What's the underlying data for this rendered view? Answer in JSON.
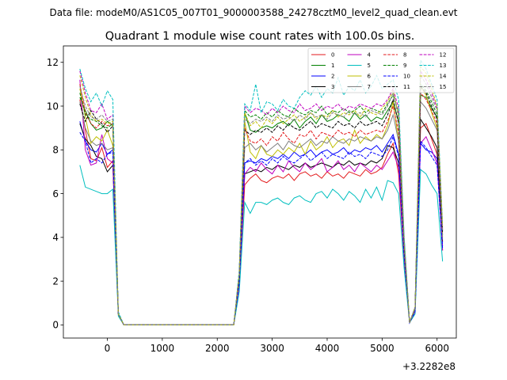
{
  "chart_data": {
    "type": "line",
    "suptitle": "Data file: modeM0/AS1C05_007T01_9000003588_24278cztM0_level2_quad_clean.evt",
    "title": "Quadrant 1 module wise count rates with 100.0s bins.",
    "xlabel": "",
    "ylabel": "",
    "x_offset_label": "+3.2282e8",
    "xlim": [
      -800,
      6350
    ],
    "ylim": [
      -0.6,
      12.75
    ],
    "xticks": [
      0,
      1000,
      2000,
      3000,
      4000,
      5000,
      6000
    ],
    "xtick_labels": [
      "0",
      "1000",
      "2000",
      "3000",
      "4000",
      "5000",
      "6000"
    ],
    "yticks": [
      0,
      2,
      4,
      6,
      8,
      10,
      12
    ],
    "ytick_labels": [
      "0",
      "2",
      "4",
      "6",
      "8",
      "10",
      "12"
    ],
    "legend_location": "upper right",
    "legend_columns": 4,
    "x": [
      -500,
      -400,
      -300,
      -200,
      -100,
      0,
      100,
      200,
      300,
      400,
      500,
      600,
      700,
      800,
      900,
      1000,
      1100,
      1200,
      1300,
      1400,
      1500,
      1600,
      1700,
      1800,
      1900,
      2000,
      2100,
      2200,
      2300,
      2400,
      2500,
      2600,
      2700,
      2800,
      2900,
      3000,
      3100,
      3200,
      3300,
      3400,
      3500,
      3600,
      3700,
      3800,
      3900,
      4000,
      4100,
      4200,
      4300,
      4400,
      4500,
      4600,
      4700,
      4800,
      4900,
      5000,
      5100,
      5200,
      5300,
      5400,
      5500,
      5600,
      5700,
      5800,
      5900,
      6000,
      6100
    ],
    "series": [
      {
        "name": "0",
        "color": "#e31a1c",
        "dash": false,
        "values": [
          10.3,
          8.9,
          7.6,
          7.5,
          8.1,
          7.2,
          7.5,
          0.5,
          0,
          0,
          0,
          0,
          0,
          0,
          0,
          0,
          0,
          0,
          0,
          0,
          0,
          0,
          0,
          0,
          0,
          0,
          0,
          0,
          0,
          1.9,
          6.4,
          6.7,
          6.9,
          6.6,
          6.5,
          6.7,
          6.8,
          6.7,
          6.9,
          6.6,
          6.9,
          7.0,
          6.8,
          6.9,
          6.7,
          7.0,
          6.8,
          6.9,
          6.7,
          7.0,
          6.9,
          6.8,
          7.1,
          6.9,
          7.0,
          7.2,
          7.8,
          8.3,
          6.9,
          3.0,
          0.1,
          0.7,
          9.0,
          9.2,
          8.5,
          7.8,
          3.4
        ]
      },
      {
        "name": "1",
        "color": "#008000",
        "dash": false,
        "values": [
          10.4,
          9.8,
          9.2,
          8.9,
          9.0,
          9.3,
          9.1,
          0.5,
          0,
          0,
          0,
          0,
          0,
          0,
          0,
          0,
          0,
          0,
          0,
          0,
          0,
          0,
          0,
          0,
          0,
          0,
          0,
          0,
          0,
          2.3,
          9.7,
          8.9,
          8.8,
          9.0,
          9.1,
          9.0,
          9.2,
          9.3,
          9.1,
          9.4,
          9.0,
          9.3,
          9.5,
          9.2,
          9.6,
          9.3,
          9.4,
          9.6,
          9.5,
          9.3,
          9.7,
          9.4,
          9.6,
          9.3,
          9.5,
          9.4,
          9.8,
          10.2,
          9.3,
          3.8,
          0.1,
          0.8,
          10.5,
          10.4,
          9.9,
          9.5,
          4.1
        ]
      },
      {
        "name": "2",
        "color": "#0000ff",
        "dash": false,
        "values": [
          9.3,
          8.4,
          8.0,
          7.9,
          8.3,
          7.8,
          8.0,
          0.5,
          0,
          0,
          0,
          0,
          0,
          0,
          0,
          0,
          0,
          0,
          0,
          0,
          0,
          0,
          0,
          0,
          0,
          0,
          0,
          0,
          0,
          2.0,
          7.4,
          7.5,
          7.4,
          7.6,
          7.5,
          7.7,
          7.6,
          7.8,
          7.6,
          7.9,
          7.7,
          7.8,
          8.0,
          7.7,
          7.9,
          8.0,
          7.8,
          7.9,
          8.1,
          7.8,
          8.0,
          7.9,
          8.1,
          8.0,
          8.2,
          7.9,
          8.3,
          8.7,
          7.8,
          3.3,
          0.1,
          0.7,
          8.3,
          8.0,
          7.9,
          7.6,
          3.6
        ]
      },
      {
        "name": "3",
        "color": "#000000",
        "dash": false,
        "values": [
          9.2,
          8.5,
          8.2,
          7.7,
          7.6,
          7.0,
          7.3,
          0.5,
          0,
          0,
          0,
          0,
          0,
          0,
          0,
          0,
          0,
          0,
          0,
          0,
          0,
          0,
          0,
          0,
          0,
          0,
          0,
          0,
          0,
          1.9,
          6.9,
          7.0,
          7.1,
          7.0,
          7.2,
          7.1,
          7.3,
          7.2,
          7.1,
          7.3,
          7.2,
          7.4,
          7.2,
          7.3,
          7.4,
          7.3,
          7.2,
          7.4,
          7.3,
          7.5,
          7.3,
          7.4,
          7.3,
          7.5,
          7.4,
          7.6,
          8.2,
          8.1,
          7.4,
          3.2,
          0.1,
          0.7,
          9.4,
          9.0,
          8.6,
          8.1,
          3.8
        ]
      },
      {
        "name": "4",
        "color": "#bf00bf",
        "dash": false,
        "values": [
          11.2,
          8.0,
          7.3,
          7.4,
          8.7,
          7.6,
          7.4,
          0.5,
          0,
          0,
          0,
          0,
          0,
          0,
          0,
          0,
          0,
          0,
          0,
          0,
          0,
          0,
          0,
          0,
          0,
          0,
          0,
          0,
          0,
          1.8,
          6.9,
          7.2,
          7.0,
          7.4,
          7.1,
          6.9,
          7.3,
          7.0,
          7.5,
          7.2,
          7.0,
          7.4,
          7.1,
          7.3,
          7.6,
          7.0,
          7.2,
          7.5,
          7.1,
          7.3,
          7.0,
          7.4,
          7.2,
          7.0,
          7.3,
          7.1,
          7.5,
          7.9,
          7.2,
          3.1,
          0.1,
          0.6,
          8.3,
          8.6,
          8.0,
          7.4,
          3.4
        ]
      },
      {
        "name": "5",
        "color": "#00bfbf",
        "dash": false,
        "values": [
          7.3,
          6.3,
          6.2,
          6.1,
          6.0,
          6.0,
          6.2,
          0.4,
          0,
          0,
          0,
          0,
          0,
          0,
          0,
          0,
          0,
          0,
          0,
          0,
          0,
          0,
          0,
          0,
          0,
          0,
          0,
          0,
          0,
          1.5,
          5.6,
          5.1,
          5.6,
          5.6,
          5.5,
          5.7,
          5.8,
          5.6,
          5.5,
          5.8,
          5.9,
          5.7,
          5.6,
          6.0,
          6.1,
          5.8,
          6.2,
          6.0,
          5.7,
          6.1,
          5.9,
          5.6,
          6.2,
          5.8,
          6.3,
          5.7,
          6.6,
          6.5,
          6.0,
          2.6,
          0.1,
          0.5,
          7.1,
          6.9,
          6.4,
          6.0,
          2.9
        ]
      },
      {
        "name": "6",
        "color": "#bfbf00",
        "dash": false,
        "values": [
          10.8,
          9.5,
          8.3,
          8.6,
          8.4,
          8.9,
          8.2,
          0.5,
          0,
          0,
          0,
          0,
          0,
          0,
          0,
          0,
          0,
          0,
          0,
          0,
          0,
          0,
          0,
          0,
          0,
          0,
          0,
          0,
          0,
          2.2,
          9.3,
          7.9,
          7.6,
          8.2,
          7.8,
          7.7,
          8.0,
          7.8,
          8.1,
          7.9,
          8.3,
          7.8,
          8.4,
          8.0,
          8.2,
          8.6,
          8.1,
          8.4,
          8.5,
          8.2,
          8.9,
          8.3,
          8.6,
          8.4,
          8.7,
          8.5,
          9.1,
          10.2,
          8.4,
          3.5,
          0.1,
          0.7,
          10.9,
          10.5,
          9.7,
          9.0,
          4.0
        ]
      },
      {
        "name": "7",
        "color": "#808080",
        "dash": false,
        "values": [
          10.2,
          9.0,
          8.4,
          8.2,
          8.3,
          8.0,
          8.1,
          0.5,
          0,
          0,
          0,
          0,
          0,
          0,
          0,
          0,
          0,
          0,
          0,
          0,
          0,
          0,
          0,
          0,
          0,
          0,
          0,
          0,
          0,
          2.1,
          8.1,
          8.3,
          8.0,
          8.2,
          7.9,
          8.1,
          8.3,
          8.0,
          8.4,
          8.2,
          8.1,
          8.3,
          8.5,
          8.2,
          8.4,
          8.3,
          8.6,
          8.4,
          8.3,
          8.5,
          8.4,
          8.6,
          8.5,
          8.4,
          8.6,
          8.5,
          8.9,
          9.6,
          8.4,
          3.4,
          0.1,
          0.7,
          10.2,
          9.9,
          9.4,
          8.9,
          3.9
        ]
      },
      {
        "name": "8",
        "color": "#e31a1c",
        "dash": true,
        "values": [
          11.0,
          9.7,
          9.2,
          9.0,
          9.3,
          9.1,
          9.2,
          0.5,
          0,
          0,
          0,
          0,
          0,
          0,
          0,
          0,
          0,
          0,
          0,
          0,
          0,
          0,
          0,
          0,
          0,
          0,
          0,
          0,
          0,
          2.2,
          9.0,
          8.4,
          8.3,
          8.5,
          8.2,
          8.6,
          8.4,
          8.8,
          8.5,
          8.3,
          8.7,
          8.6,
          8.9,
          8.5,
          8.8,
          8.7,
          8.6,
          8.9,
          8.7,
          8.8,
          8.6,
          8.9,
          8.7,
          8.8,
          8.9,
          8.8,
          9.3,
          10.0,
          8.8,
          3.6,
          0.1,
          0.8,
          10.6,
          10.3,
          9.8,
          9.2,
          4.2
        ]
      },
      {
        "name": "9",
        "color": "#008000",
        "dash": true,
        "values": [
          10.6,
          9.6,
          9.4,
          9.3,
          9.1,
          9.0,
          9.2,
          0.5,
          0,
          0,
          0,
          0,
          0,
          0,
          0,
          0,
          0,
          0,
          0,
          0,
          0,
          0,
          0,
          0,
          0,
          0,
          0,
          0,
          0,
          2.3,
          9.8,
          9.5,
          9.6,
          9.4,
          9.7,
          9.5,
          9.8,
          9.6,
          9.5,
          9.9,
          9.7,
          9.6,
          9.8,
          9.7,
          10.0,
          9.6,
          9.8,
          9.7,
          9.9,
          9.7,
          9.8,
          10.0,
          9.7,
          9.9,
          9.8,
          9.7,
          10.1,
          10.5,
          9.7,
          3.9,
          0.1,
          0.8,
          11.0,
          10.7,
          10.2,
          9.6,
          4.3
        ]
      },
      {
        "name": "10",
        "color": "#0000ff",
        "dash": true,
        "values": [
          8.8,
          8.4,
          7.4,
          7.6,
          7.4,
          7.8,
          7.9,
          0.5,
          0,
          0,
          0,
          0,
          0,
          0,
          0,
          0,
          0,
          0,
          0,
          0,
          0,
          0,
          0,
          0,
          0,
          0,
          0,
          0,
          0,
          1.9,
          7.4,
          7.6,
          7.3,
          7.5,
          7.3,
          7.6,
          7.4,
          7.7,
          7.5,
          7.4,
          7.6,
          7.8,
          7.5,
          7.7,
          7.9,
          7.6,
          7.8,
          7.7,
          7.6,
          7.9,
          7.7,
          7.8,
          7.6,
          7.9,
          7.8,
          7.7,
          8.0,
          8.6,
          7.7,
          3.2,
          0.1,
          0.6,
          8.4,
          8.1,
          7.7,
          7.3,
          3.5
        ]
      },
      {
        "name": "11",
        "color": "#000000",
        "dash": true,
        "values": [
          10.1,
          9.3,
          9.8,
          9.4,
          9.2,
          8.8,
          9.1,
          0.5,
          0,
          0,
          0,
          0,
          0,
          0,
          0,
          0,
          0,
          0,
          0,
          0,
          0,
          0,
          0,
          0,
          0,
          0,
          0,
          0,
          0,
          2.2,
          8.9,
          8.7,
          8.9,
          8.8,
          9.0,
          8.8,
          9.1,
          8.9,
          9.2,
          9.0,
          8.9,
          9.1,
          9.3,
          9.0,
          9.2,
          9.1,
          9.0,
          9.3,
          9.1,
          9.2,
          9.0,
          9.3,
          9.1,
          9.2,
          9.3,
          9.1,
          9.6,
          10.3,
          9.2,
          3.7,
          0.1,
          0.8,
          10.9,
          10.6,
          10.0,
          9.4,
          4.2
        ]
      },
      {
        "name": "12",
        "color": "#bf00bf",
        "dash": true,
        "values": [
          11.6,
          10.6,
          9.8,
          9.7,
          10.1,
          9.4,
          9.6,
          0.5,
          0,
          0,
          0,
          0,
          0,
          0,
          0,
          0,
          0,
          0,
          0,
          0,
          0,
          0,
          0,
          0,
          0,
          0,
          0,
          0,
          0,
          2.4,
          10.0,
          9.7,
          9.9,
          9.8,
          9.6,
          9.9,
          9.7,
          10.0,
          9.8,
          9.7,
          10.1,
          9.8,
          9.9,
          10.1,
          9.8,
          10.0,
          9.9,
          10.1,
          9.8,
          10.0,
          9.9,
          10.1,
          10.0,
          9.9,
          10.1,
          10.0,
          10.3,
          10.8,
          9.9,
          4.0,
          0.1,
          0.8,
          11.6,
          11.2,
          10.6,
          9.9,
          4.4
        ]
      },
      {
        "name": "13",
        "color": "#00bfbf",
        "dash": true,
        "values": [
          11.7,
          10.8,
          10.2,
          10.6,
          10.0,
          10.7,
          10.3,
          0.6,
          0,
          0,
          0,
          0,
          0,
          0,
          0,
          0,
          0,
          0,
          0,
          0,
          0,
          0,
          0,
          0,
          0,
          0,
          0,
          0,
          0,
          2.5,
          10.1,
          9.8,
          11.0,
          9.7,
          10.2,
          10.1,
          9.8,
          10.3,
          10.0,
          9.9,
          10.4,
          10.7,
          10.5,
          10.9,
          10.4,
          10.8,
          10.6,
          11.3,
          10.5,
          10.9,
          10.7,
          11.2,
          10.6,
          10.9,
          11.4,
          10.8,
          11.0,
          11.2,
          10.3,
          4.1,
          0.1,
          0.8,
          12.1,
          11.7,
          11.0,
          10.3,
          4.6
        ]
      },
      {
        "name": "14",
        "color": "#bfbf00",
        "dash": true,
        "values": [
          11.4,
          10.4,
          9.6,
          9.3,
          9.4,
          9.2,
          9.3,
          0.5,
          0,
          0,
          0,
          0,
          0,
          0,
          0,
          0,
          0,
          0,
          0,
          0,
          0,
          0,
          0,
          0,
          0,
          0,
          0,
          0,
          0,
          2.3,
          9.7,
          9.1,
          9.3,
          9.0,
          9.4,
          9.2,
          9.5,
          9.2,
          9.4,
          9.6,
          9.3,
          9.5,
          9.7,
          9.4,
          9.6,
          9.5,
          9.8,
          9.5,
          9.7,
          9.6,
          9.8,
          9.5,
          9.9,
          9.7,
          9.6,
          9.9,
          10.2,
          10.7,
          9.6,
          3.8,
          0.1,
          0.8,
          11.8,
          11.5,
          10.8,
          10.0,
          4.5
        ]
      },
      {
        "name": "15",
        "color": "#808080",
        "dash": true,
        "values": [
          10.9,
          10.0,
          9.5,
          9.4,
          9.6,
          9.3,
          9.4,
          0.5,
          0,
          0,
          0,
          0,
          0,
          0,
          0,
          0,
          0,
          0,
          0,
          0,
          0,
          0,
          0,
          0,
          0,
          0,
          0,
          0,
          0,
          2.3,
          9.4,
          9.2,
          9.4,
          9.3,
          9.5,
          9.3,
          9.6,
          9.4,
          9.5,
          9.3,
          9.6,
          9.4,
          9.7,
          9.5,
          9.6,
          9.4,
          9.7,
          9.6,
          9.5,
          9.8,
          9.6,
          9.7,
          9.5,
          9.8,
          9.7,
          9.6,
          10.0,
          10.6,
          9.5,
          3.8,
          0.1,
          0.8,
          11.4,
          11.0,
          10.4,
          9.8,
          4.3
        ]
      }
    ]
  }
}
